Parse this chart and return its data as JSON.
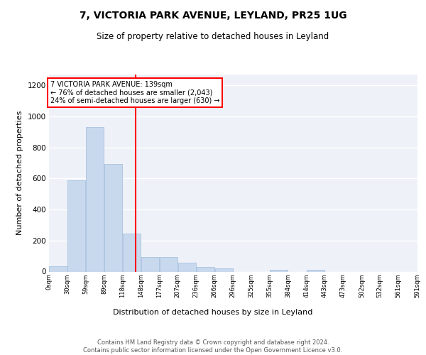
{
  "title": "7, VICTORIA PARK AVENUE, LEYLAND, PR25 1UG",
  "subtitle": "Size of property relative to detached houses in Leyland",
  "xlabel": "Distribution of detached houses by size in Leyland",
  "ylabel": "Number of detached properties",
  "bar_color": "#c8d9ee",
  "bar_edgecolor": "#a8c0de",
  "background_color": "#eef2f8",
  "fig_background_color": "#ffffff",
  "grid_color": "#ffffff",
  "vline_x": 139,
  "vline_color": "red",
  "annotation_text": "7 VICTORIA PARK AVENUE: 139sqm\n← 76% of detached houses are smaller (2,043)\n24% of semi-detached houses are larger (630) →",
  "annotation_box_color": "white",
  "annotation_box_edgecolor": "red",
  "bins": [
    0,
    29.5,
    59,
    88.5,
    118,
    147.5,
    177,
    206.5,
    236,
    265.5,
    295,
    324.5,
    354,
    383.5,
    413,
    442.5,
    472,
    501.5,
    531,
    560.5,
    591
  ],
  "bin_labels": [
    "0sqm",
    "30sqm",
    "59sqm",
    "89sqm",
    "118sqm",
    "148sqm",
    "177sqm",
    "207sqm",
    "236sqm",
    "266sqm",
    "296sqm",
    "325sqm",
    "355sqm",
    "384sqm",
    "414sqm",
    "443sqm",
    "473sqm",
    "502sqm",
    "532sqm",
    "561sqm",
    "591sqm"
  ],
  "values": [
    35,
    590,
    930,
    695,
    245,
    95,
    95,
    55,
    30,
    20,
    0,
    0,
    10,
    0,
    10,
    0,
    0,
    0,
    0,
    0
  ],
  "ylim": [
    0,
    1270
  ],
  "yticks": [
    0,
    200,
    400,
    600,
    800,
    1000,
    1200
  ],
  "footer_text": "Contains HM Land Registry data © Crown copyright and database right 2024.\nContains public sector information licensed under the Open Government Licence v3.0.",
  "title_fontsize": 10,
  "subtitle_fontsize": 8.5,
  "ylabel_fontsize": 8,
  "xlabel_fontsize": 8,
  "ytick_fontsize": 7.5,
  "xtick_fontsize": 6,
  "annotation_fontsize": 7,
  "footer_fontsize": 6
}
